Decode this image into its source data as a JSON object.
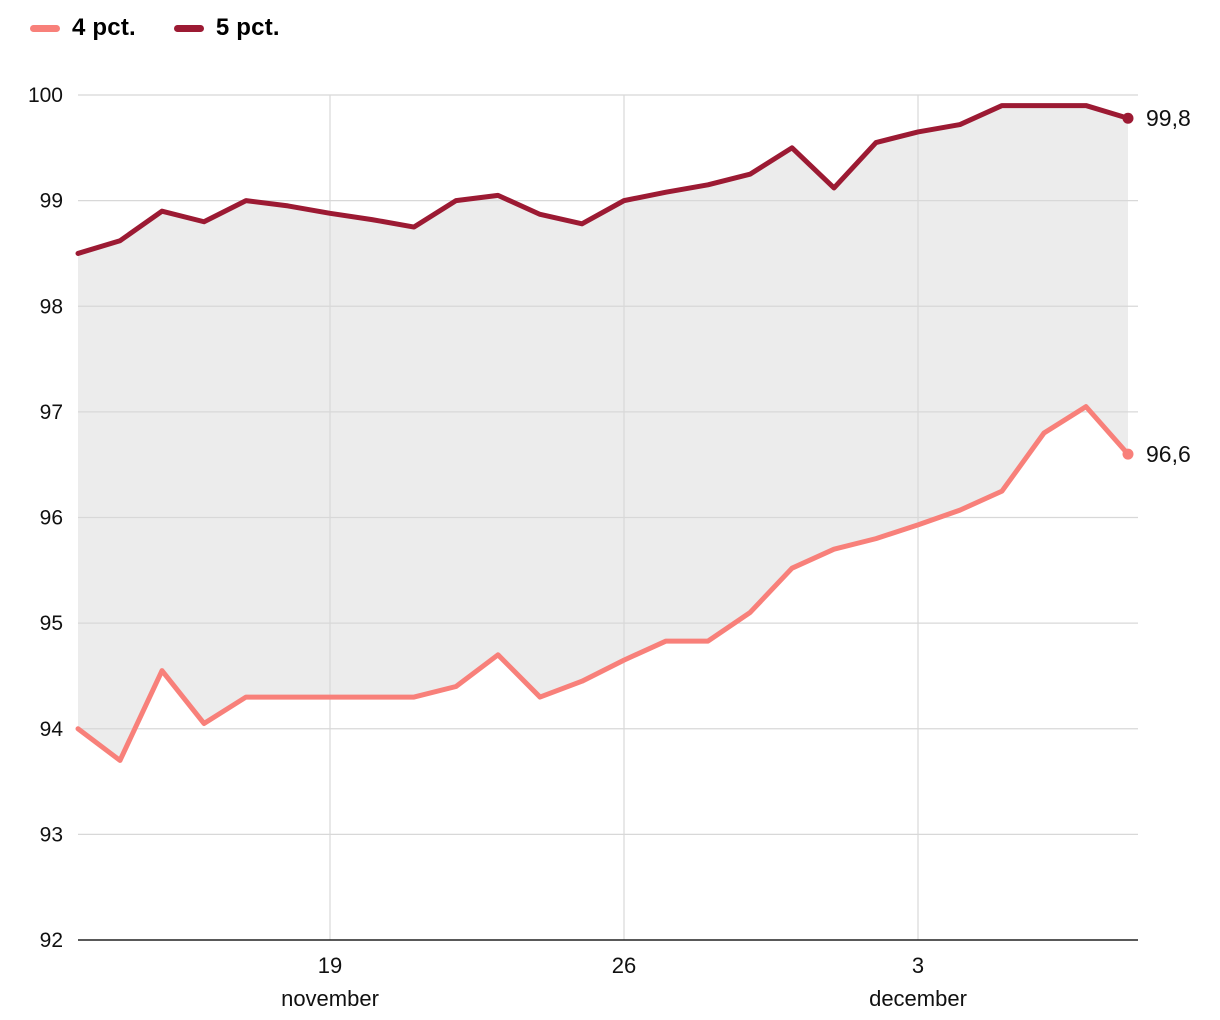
{
  "legend": {
    "items": [
      {
        "label": "4 pct.",
        "color": "#f8807a"
      },
      {
        "label": "5 pct.",
        "color": "#9c1a33"
      }
    ]
  },
  "chart_data": {
    "type": "line",
    "title": "",
    "xlabel": "",
    "ylabel": "",
    "x": [
      "13 nov",
      "14 nov",
      "15 nov",
      "16 nov",
      "17 nov",
      "18 nov",
      "19 nov",
      "20 nov",
      "21 nov",
      "22 nov",
      "23 nov",
      "24 nov",
      "25 nov",
      "26 nov",
      "27 nov",
      "28 nov",
      "29 nov",
      "30 nov",
      "1 dec",
      "2 dec",
      "3 dec",
      "4 dec",
      "5 dec",
      "6 dec",
      "7 dec",
      "8 dec"
    ],
    "series": [
      {
        "name": "4 pct.",
        "color": "#f8807a",
        "end_label": "96,6",
        "values": [
          94.0,
          93.7,
          94.55,
          94.05,
          94.3,
          94.3,
          94.3,
          94.3,
          94.3,
          94.4,
          94.7,
          94.3,
          94.45,
          94.65,
          94.83,
          94.83,
          95.1,
          95.52,
          95.7,
          95.8,
          95.93,
          96.07,
          96.25,
          96.8,
          97.05,
          96.6
        ]
      },
      {
        "name": "5 pct.",
        "color": "#9c1a33",
        "end_label": "99,8",
        "values": [
          98.5,
          98.62,
          98.9,
          98.8,
          99.0,
          98.95,
          98.88,
          98.82,
          98.75,
          99.0,
          99.05,
          98.87,
          98.78,
          99.0,
          99.08,
          99.15,
          99.25,
          99.5,
          99.12,
          99.55,
          99.65,
          99.72,
          99.9,
          99.9,
          99.9,
          99.78
        ]
      }
    ],
    "ylim": [
      92,
      100
    ],
    "yticks": [
      92,
      93,
      94,
      95,
      96,
      97,
      98,
      99,
      100
    ],
    "xticks": [
      {
        "index": 6,
        "label": "19",
        "sublabel": "november"
      },
      {
        "index": 13,
        "label": "26",
        "sublabel": ""
      },
      {
        "index": 20,
        "label": "3",
        "sublabel": "december"
      }
    ],
    "grid": true,
    "legend_position": "top-left",
    "styles": {
      "fill_between": "#ececec",
      "grid_color": "#d8d8d8",
      "axis_color": "#222222",
      "text_color": "#111111"
    }
  }
}
